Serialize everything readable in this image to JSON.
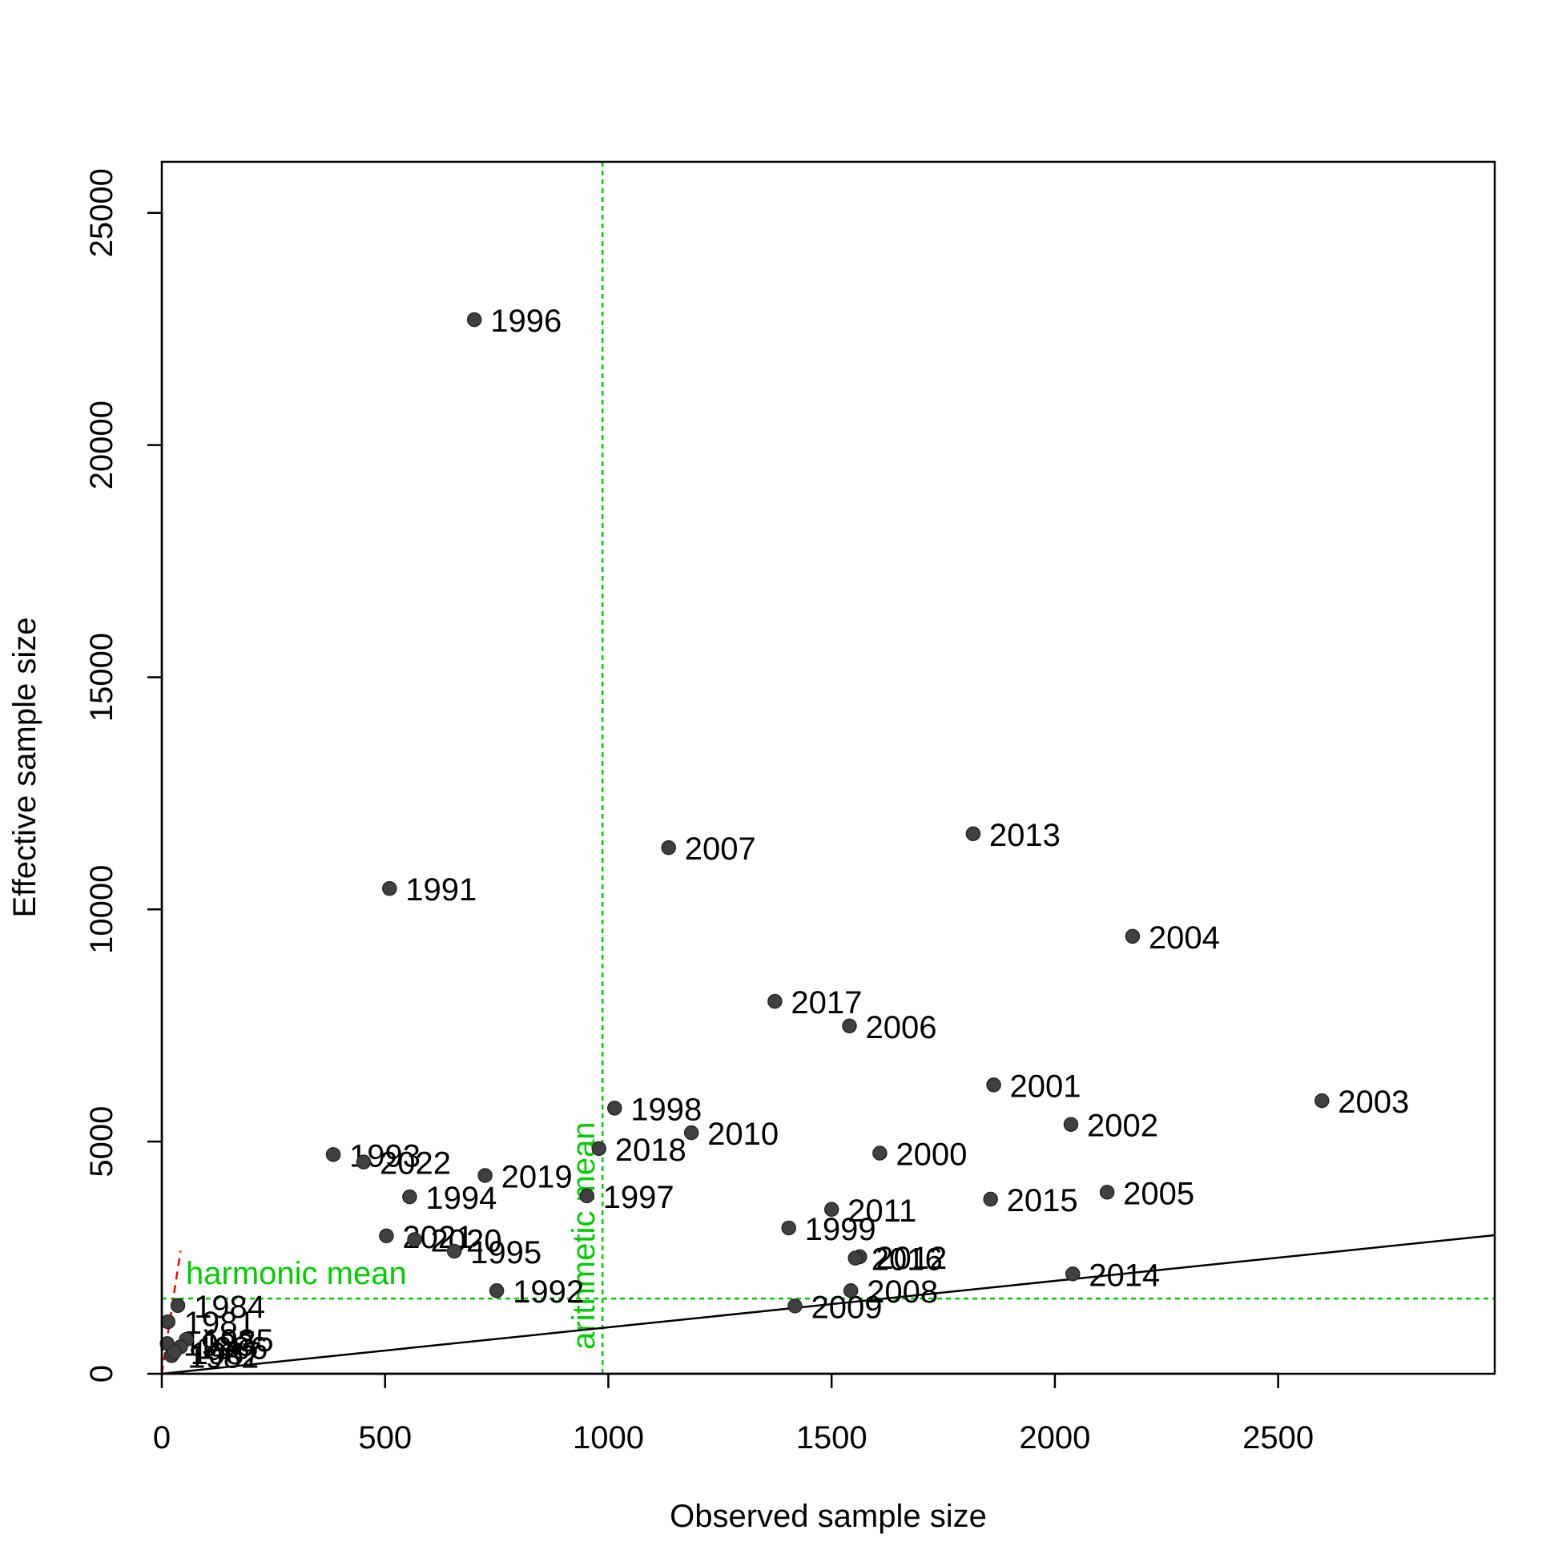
{
  "chart_data": {
    "type": "scatter",
    "title": "",
    "xlabel": "Observed sample size",
    "ylabel": "Effective sample size",
    "xlim": [
      0,
      2985
    ],
    "ylim": [
      0,
      26100
    ],
    "xticks": [
      0,
      500,
      1000,
      1500,
      2000,
      2500
    ],
    "yticks": [
      0,
      5000,
      10000,
      15000,
      20000,
      25000
    ],
    "grid": false,
    "colors": {
      "points": "#404040",
      "reference": "#00cd00",
      "fit": "#ff0000",
      "line": "#000000"
    },
    "points": [
      {
        "label": "1996",
        "x": 700,
        "y": 22700
      },
      {
        "label": "1991",
        "x": 510,
        "y": 10450
      },
      {
        "label": "2007",
        "x": 1135,
        "y": 11330
      },
      {
        "label": "2013",
        "x": 1817,
        "y": 11630
      },
      {
        "label": "2004",
        "x": 2174,
        "y": 9420
      },
      {
        "label": "2017",
        "x": 1373,
        "y": 8020
      },
      {
        "label": "2006",
        "x": 1540,
        "y": 7490
      },
      {
        "label": "2001",
        "x": 1863,
        "y": 6220
      },
      {
        "label": "2003",
        "x": 2598,
        "y": 5880
      },
      {
        "label": "1998",
        "x": 1014,
        "y": 5720
      },
      {
        "label": "2002",
        "x": 2036,
        "y": 5370
      },
      {
        "label": "2010",
        "x": 1186,
        "y": 5190
      },
      {
        "label": "2018",
        "x": 979,
        "y": 4850
      },
      {
        "label": "2000",
        "x": 1608,
        "y": 4750
      },
      {
        "label": "1993",
        "x": 384,
        "y": 4720
      },
      {
        "label": "2022",
        "x": 452,
        "y": 4560
      },
      {
        "label": "2019",
        "x": 724,
        "y": 4270
      },
      {
        "label": "2005",
        "x": 2117,
        "y": 3910
      },
      {
        "label": "1997",
        "x": 952,
        "y": 3830
      },
      {
        "label": "1994",
        "x": 555,
        "y": 3810
      },
      {
        "label": "2015",
        "x": 1856,
        "y": 3760
      },
      {
        "label": "2011",
        "x": 1500,
        "y": 3540
      },
      {
        "label": "1999",
        "x": 1404,
        "y": 3140
      },
      {
        "label": "2021",
        "x": 503,
        "y": 2970
      },
      {
        "label": "2020",
        "x": 566,
        "y": 2890
      },
      {
        "label": "1995",
        "x": 655,
        "y": 2640
      },
      {
        "label": "2012",
        "x": 1563,
        "y": 2520
      },
      {
        "label": "2016",
        "x": 1553,
        "y": 2490
      },
      {
        "label": "2014",
        "x": 2040,
        "y": 2150
      },
      {
        "label": "1992",
        "x": 750,
        "y": 1790
      },
      {
        "label": "2008",
        "x": 1543,
        "y": 1790
      },
      {
        "label": "2009",
        "x": 1418,
        "y": 1460
      },
      {
        "label": "1984",
        "x": 36,
        "y": 1470
      },
      {
        "label": "1981",
        "x": 14,
        "y": 1120
      },
      {
        "label": "1985",
        "x": 55,
        "y": 740
      },
      {
        "label": "1983",
        "x": 12,
        "y": 650
      },
      {
        "label": "1986",
        "x": 42,
        "y": 580
      },
      {
        "label": "1982",
        "x": 22,
        "y": 390
      },
      {
        "label": "1987",
        "x": 28,
        "y": 470
      }
    ],
    "reference_lines": {
      "arithmetic_mean": {
        "label": "arithmetic mean",
        "x": 987
      },
      "harmonic_mean": {
        "label": "harmonic mean",
        "y": 1620
      }
    }
  }
}
